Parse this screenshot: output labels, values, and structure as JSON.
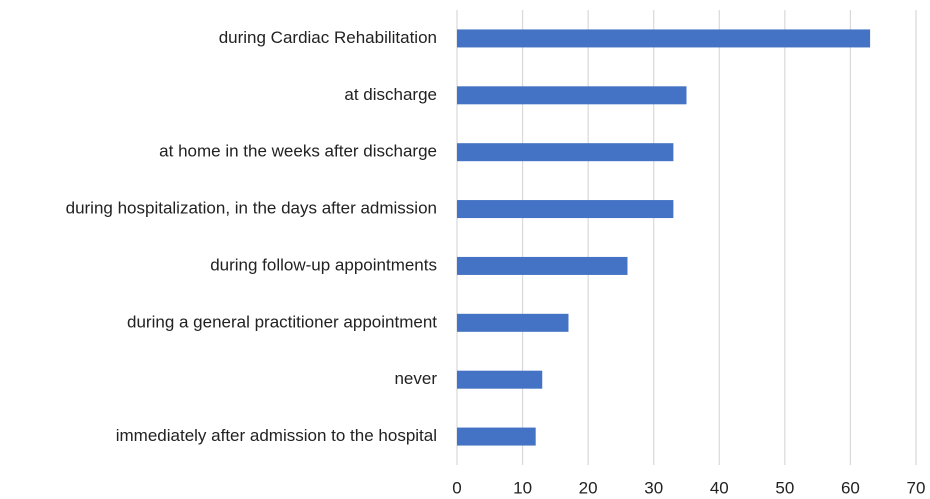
{
  "chart_data": {
    "type": "hbar",
    "categories": [
      "during Cardiac Rehabilitation",
      "at discharge",
      "at home in the weeks after discharge",
      "during hospitalization, in the days after admission",
      "during follow-up appointments",
      "during a general practitioner appointment",
      "never",
      "immediately after admission to the hospital"
    ],
    "values": [
      63,
      35,
      33,
      33,
      26,
      17,
      13,
      12
    ],
    "color": "#4472c4",
    "xlim": [
      0,
      70
    ],
    "xticks": [
      0,
      10,
      20,
      30,
      40,
      50,
      60,
      70
    ],
    "grid": true
  }
}
